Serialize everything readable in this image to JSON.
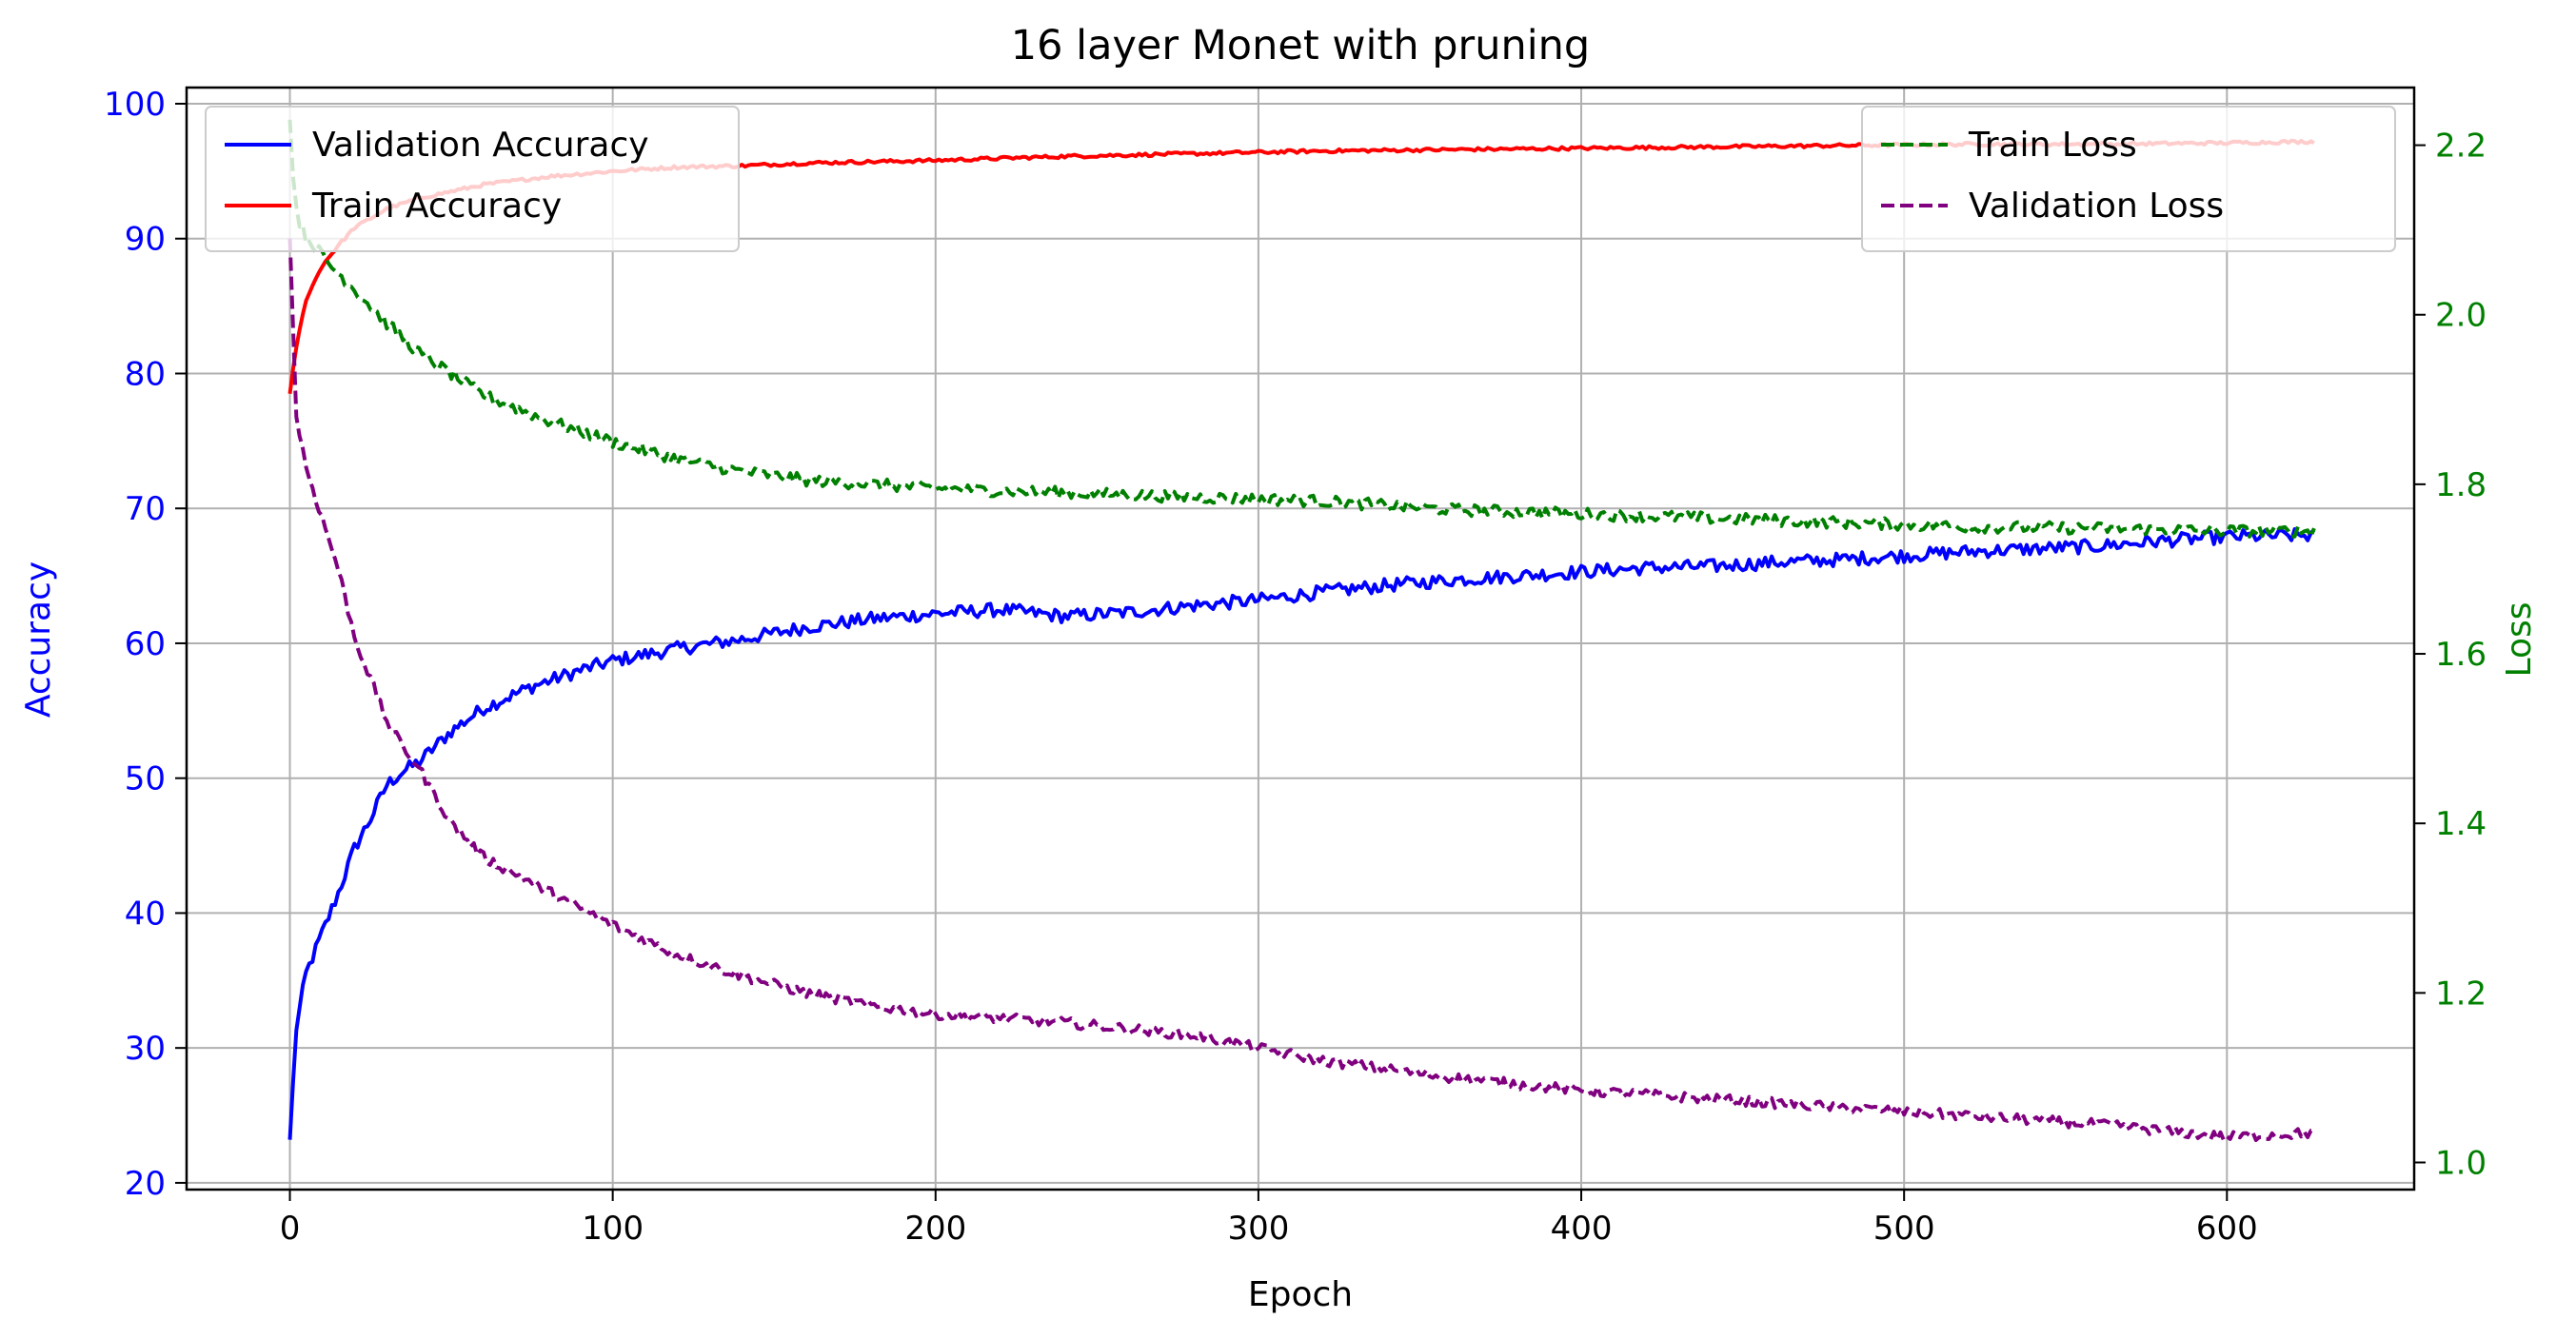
{
  "chart_data": {
    "type": "line",
    "title": "16 layer Monet with pruning",
    "xlabel": "Epoch",
    "ylabel_left": "Accuracy",
    "ylabel_right": "Loss",
    "xlim": [
      -32,
      658
    ],
    "ylim_left": [
      19.5,
      101.2
    ],
    "ylim_right": [
      0.968,
      2.268
    ],
    "xticks": [
      0,
      100,
      200,
      300,
      400,
      500,
      600
    ],
    "yticks_left": [
      20,
      30,
      40,
      50,
      60,
      70,
      80,
      90,
      100
    ],
    "yticks_right": [
      "1.0",
      "1.2",
      "1.4",
      "1.6",
      "1.8",
      "2.0",
      "2.2"
    ],
    "grid": true,
    "colors": {
      "left_axis": "#0000ff",
      "right_axis": "#008000",
      "grid": "#b0b0b0"
    },
    "legend_left": {
      "placement": "upper-left",
      "entries": [
        {
          "label": "Validation Accuracy",
          "color": "#0000ff",
          "style": "solid"
        },
        {
          "label": "Train Accuracy",
          "color": "#ff0000",
          "style": "solid"
        }
      ]
    },
    "legend_right": {
      "placement": "upper-right",
      "entries": [
        {
          "label": "Train Loss",
          "color": "#008000",
          "style": "dashed"
        },
        {
          "label": "Validation Loss",
          "color": "#800080",
          "style": "dashed"
        }
      ]
    },
    "series": [
      {
        "name": "Validation Accuracy",
        "axis": "left",
        "color": "#0000ff",
        "style": "solid",
        "noise": 0.5,
        "x": [
          0,
          2,
          5,
          10,
          15,
          20,
          25,
          30,
          35,
          40,
          50,
          60,
          75,
          90,
          100,
          120,
          140,
          160,
          180,
          200,
          220,
          240,
          260,
          280,
          300,
          320,
          340,
          360,
          380,
          400,
          420,
          440,
          460,
          480,
          500,
          520,
          540,
          560,
          580,
          600,
          627
        ],
        "y": [
          23.2,
          31.5,
          35.5,
          38.5,
          41.5,
          44.8,
          47.0,
          49.5,
          50.5,
          51.2,
          53.5,
          55.2,
          56.8,
          58.0,
          58.7,
          59.6,
          60.3,
          61.2,
          61.8,
          62.2,
          62.5,
          62.0,
          62.3,
          62.8,
          63.2,
          63.8,
          64.3,
          64.7,
          65.0,
          65.3,
          65.6,
          65.7,
          66.0,
          66.2,
          66.5,
          66.8,
          67.0,
          67.2,
          67.6,
          67.9,
          68.0
        ]
      },
      {
        "name": "Train Accuracy",
        "axis": "left",
        "color": "#ff0000",
        "style": "solid",
        "noise": 0.12,
        "x": [
          0,
          2,
          5,
          10,
          15,
          20,
          30,
          40,
          60,
          80,
          100,
          120,
          140,
          160,
          180,
          200,
          240,
          280,
          320,
          360,
          400,
          440,
          480,
          520,
          560,
          600,
          627
        ],
        "y": [
          78.5,
          82.0,
          85.5,
          88.0,
          89.5,
          90.8,
          92.2,
          93.0,
          94.0,
          94.6,
          95.0,
          95.3,
          95.4,
          95.6,
          95.7,
          95.8,
          96.1,
          96.3,
          96.5,
          96.6,
          96.7,
          96.8,
          96.9,
          97.0,
          97.0,
          97.1,
          97.2
        ]
      },
      {
        "name": "Train Loss",
        "axis": "right",
        "color": "#008000",
        "style": "dashed",
        "noise": 0.007,
        "x": [
          0,
          1,
          2,
          3,
          5,
          8,
          12,
          20,
          30,
          40,
          50,
          60,
          80,
          100,
          120,
          140,
          160,
          180,
          200,
          240,
          280,
          320,
          360,
          400,
          440,
          480,
          520,
          560,
          600,
          627
        ],
        "y": [
          2.23,
          2.16,
          2.13,
          2.11,
          2.09,
          2.08,
          2.06,
          2.03,
          1.99,
          1.955,
          1.93,
          1.905,
          1.875,
          1.85,
          1.83,
          1.815,
          1.805,
          1.8,
          1.795,
          1.79,
          1.785,
          1.78,
          1.77,
          1.765,
          1.76,
          1.755,
          1.75,
          1.748,
          1.745,
          1.745
        ]
      },
      {
        "name": "Validation Loss",
        "axis": "right",
        "color": "#800080",
        "style": "dashed",
        "noise": 0.006,
        "x": [
          0,
          2,
          5,
          10,
          15,
          20,
          25,
          30,
          35,
          40,
          50,
          60,
          80,
          100,
          120,
          140,
          160,
          180,
          200,
          240,
          280,
          320,
          360,
          400,
          440,
          480,
          520,
          560,
          600,
          627
        ],
        "y": [
          2.09,
          1.88,
          1.82,
          1.76,
          1.7,
          1.62,
          1.57,
          1.52,
          1.49,
          1.465,
          1.4,
          1.36,
          1.32,
          1.28,
          1.245,
          1.22,
          1.2,
          1.185,
          1.175,
          1.165,
          1.15,
          1.12,
          1.1,
          1.085,
          1.075,
          1.065,
          1.055,
          1.045,
          1.03,
          1.035
        ]
      }
    ]
  }
}
